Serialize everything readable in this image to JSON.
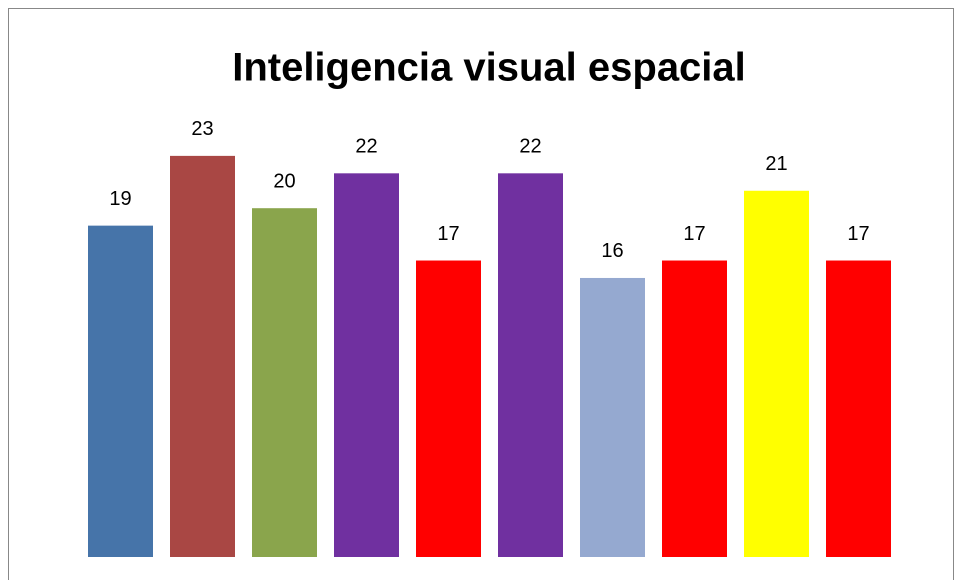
{
  "chart_data": {
    "type": "bar",
    "title": "Inteligencia visual espacial",
    "values": [
      19,
      23,
      20,
      22,
      17,
      22,
      16,
      17,
      21,
      17
    ],
    "colors": [
      "#4674a9",
      "#a94744",
      "#8aa54c",
      "#7030a0",
      "#ff0000",
      "#7030a0",
      "#95a9d0",
      "#ff0000",
      "#ffff00",
      "#ff0000"
    ],
    "ylim": [
      0,
      25
    ],
    "grid": false
  }
}
